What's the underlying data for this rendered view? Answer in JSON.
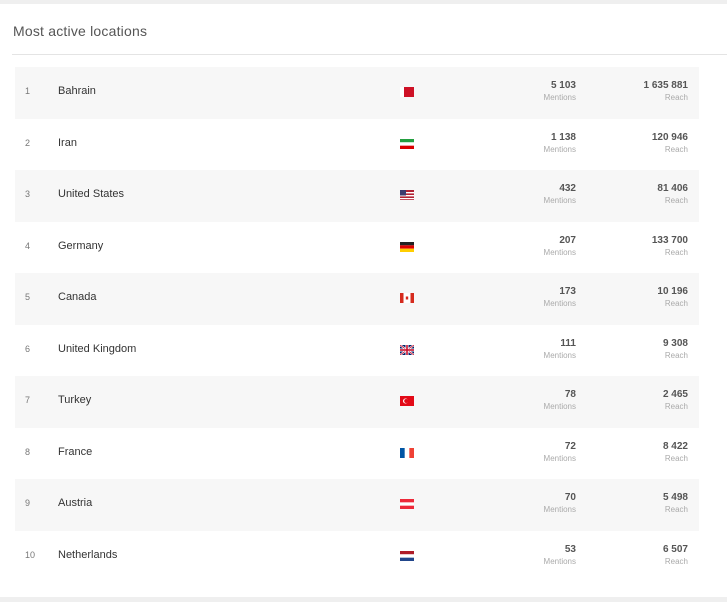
{
  "title": "Most active locations",
  "labels": {
    "mentions": "Mentions",
    "reach": "Reach"
  },
  "rows": [
    {
      "rank": "1",
      "country": "Bahrain",
      "flag": "flag-bahrain-icon",
      "mentions": "5 103",
      "reach": "1 635 881"
    },
    {
      "rank": "2",
      "country": "Iran",
      "flag": "flag-iran-icon",
      "mentions": "1 138",
      "reach": "120 946"
    },
    {
      "rank": "3",
      "country": "United States",
      "flag": "flag-united-states-icon",
      "mentions": "432",
      "reach": "81 406"
    },
    {
      "rank": "4",
      "country": "Germany",
      "flag": "flag-germany-icon",
      "mentions": "207",
      "reach": "133 700"
    },
    {
      "rank": "5",
      "country": "Canada",
      "flag": "flag-canada-icon",
      "mentions": "173",
      "reach": "10 196"
    },
    {
      "rank": "6",
      "country": "United Kingdom",
      "flag": "flag-united-kingdom-icon",
      "mentions": "111",
      "reach": "9 308"
    },
    {
      "rank": "7",
      "country": "Turkey",
      "flag": "flag-turkey-icon",
      "mentions": "78",
      "reach": "2 465"
    },
    {
      "rank": "8",
      "country": "France",
      "flag": "flag-france-icon",
      "mentions": "72",
      "reach": "8 422"
    },
    {
      "rank": "9",
      "country": "Austria",
      "flag": "flag-austria-icon",
      "mentions": "70",
      "reach": "5 498"
    },
    {
      "rank": "10",
      "country": "Netherlands",
      "flag": "flag-netherlands-icon",
      "mentions": "53",
      "reach": "6 507"
    }
  ]
}
